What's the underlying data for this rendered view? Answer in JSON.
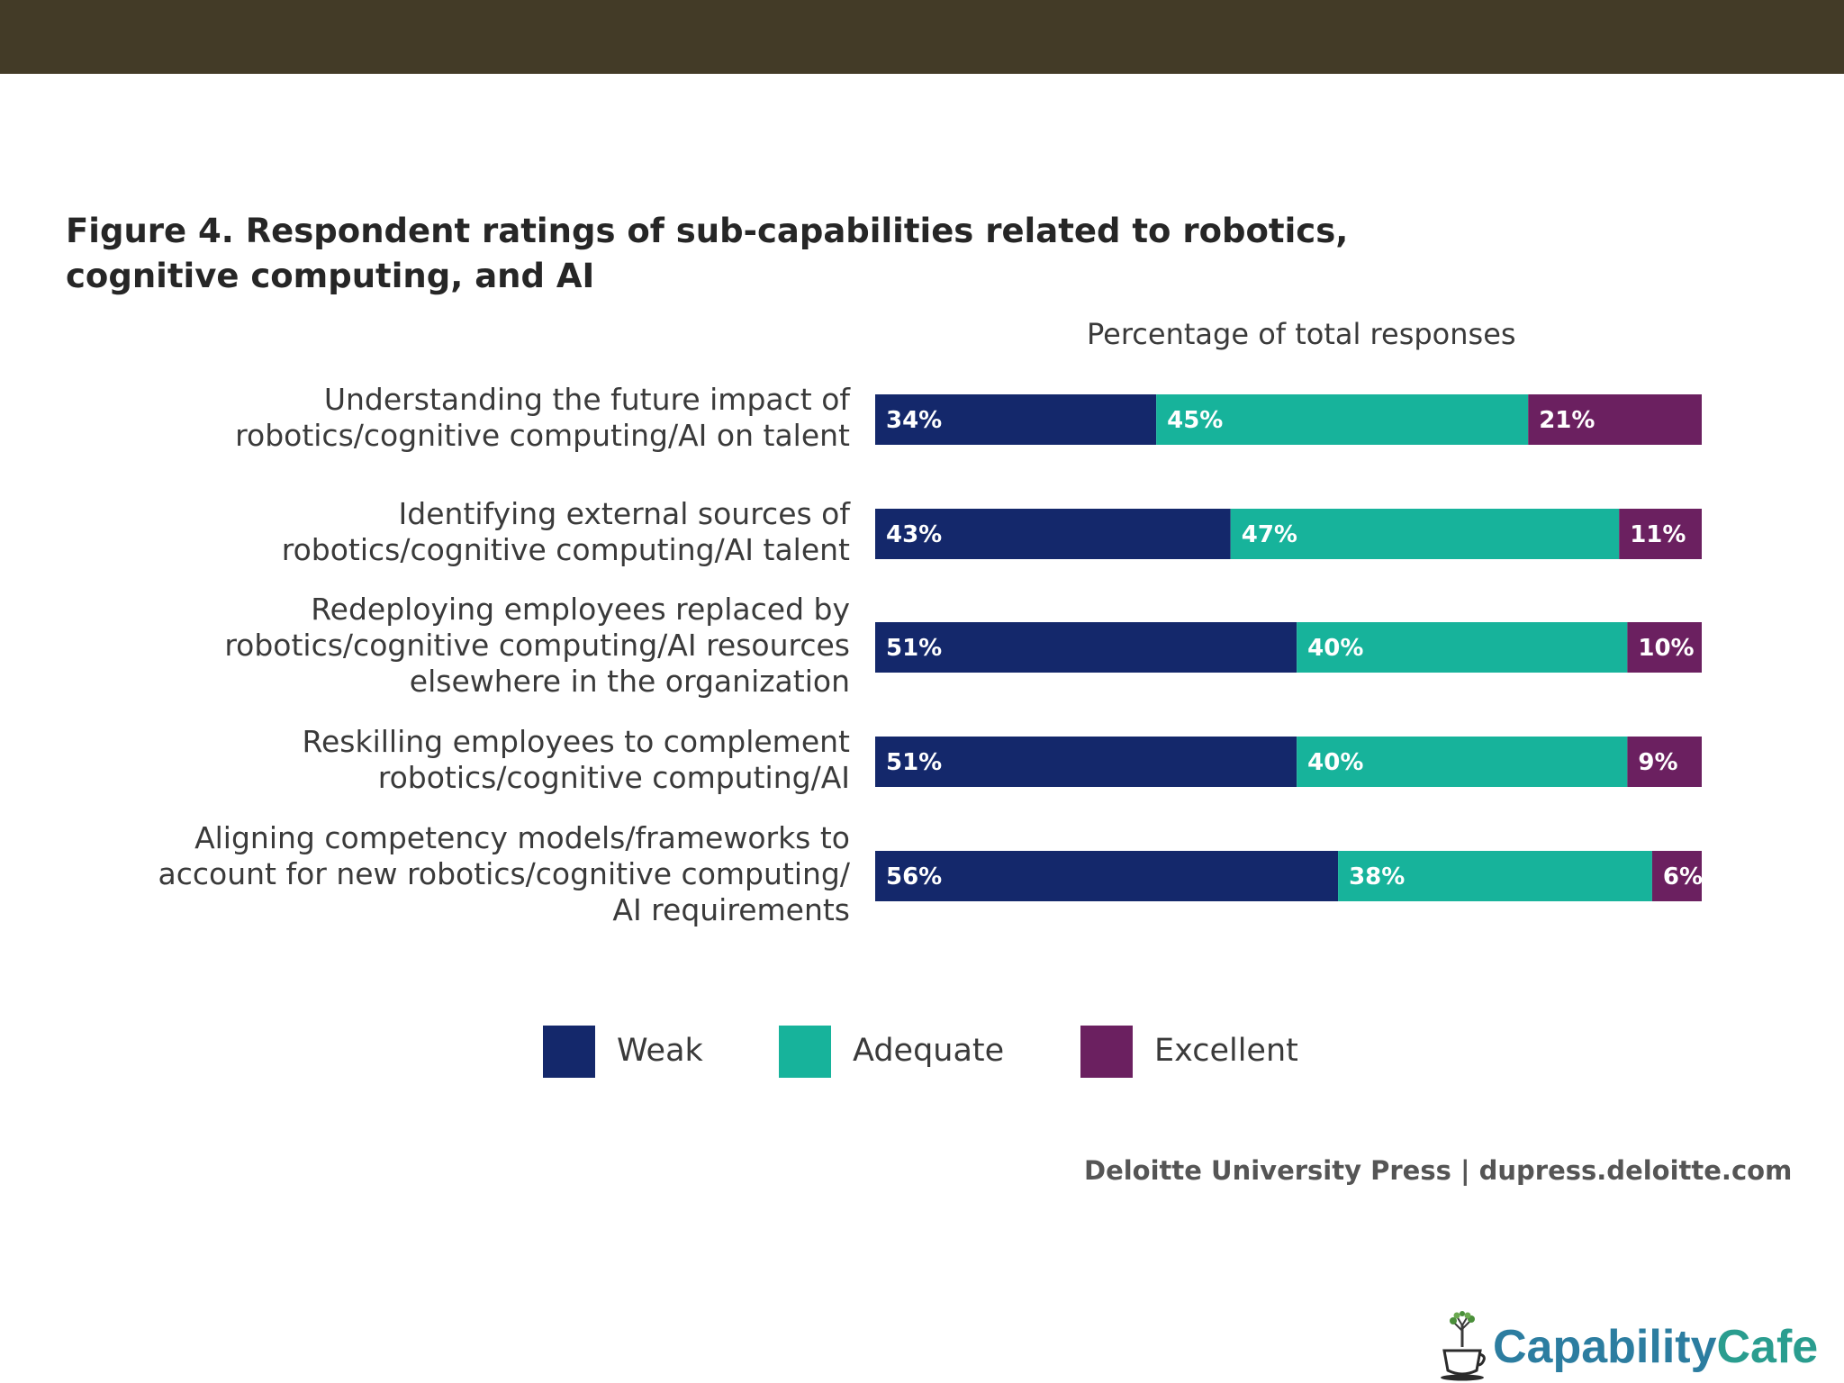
{
  "chart_data": {
    "type": "bar",
    "orientation": "horizontal",
    "stacked": true,
    "title": "Figure 4. Respondent ratings of sub-capabilities related to robotics, cognitive computing, and AI",
    "axis_title": "Percentage of total responses",
    "xlim": [
      0,
      100
    ],
    "categories": [
      [
        "Understanding the future impact of",
        "robotics/cognitive computing/AI on talent"
      ],
      [
        "Identifying external sources of",
        "robotics/cognitive computing/AI talent"
      ],
      [
        "Redeploying employees replaced by",
        "robotics/cognitive computing/AI resources",
        "elsewhere in the organization"
      ],
      [
        "Reskilling employees to complement",
        "robotics/cognitive computing/AI"
      ],
      [
        "Aligning competency models/frameworks to",
        "account for new robotics/cognitive computing/",
        "AI requirements"
      ]
    ],
    "series": [
      {
        "name": "Weak",
        "color": "#14286b",
        "values": [
          34,
          43,
          51,
          51,
          56
        ]
      },
      {
        "name": "Adequate",
        "color": "#17b39b",
        "values": [
          45,
          47,
          40,
          40,
          38
        ]
      },
      {
        "name": "Excellent",
        "color": "#6b2060",
        "values": [
          21,
          11,
          10,
          9,
          6
        ]
      }
    ],
    "legend_position": "bottom-center"
  },
  "source": "Deloitte University Press  |  dupress.deloitte.com",
  "logo": {
    "text_part1": "Capability",
    "text_part2": "Cafe",
    "icon": "coffee-cup-tree-icon"
  },
  "colors": {
    "top_band": "#433b27",
    "weak": "#14286b",
    "adequate": "#17b39b",
    "excellent": "#6b2060"
  }
}
